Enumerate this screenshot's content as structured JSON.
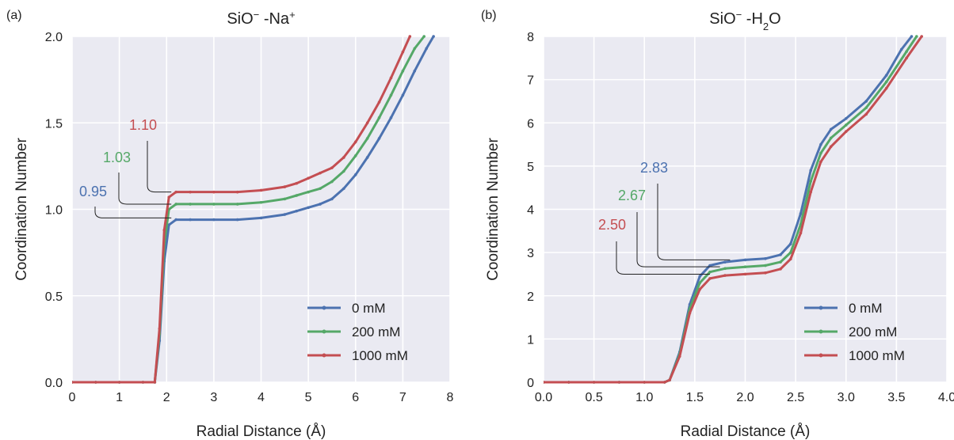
{
  "figure": {
    "panels": [
      "(a)",
      "(b)"
    ]
  },
  "chart_data": [
    {
      "type": "line",
      "panel": "(a)",
      "title": "SiO⁻ -Na⁺",
      "title_main": "SiO",
      "title_sup": "−",
      "title_rest": " -Na",
      "title_sup2": "+",
      "xlabel": "Radial Distance (Å)",
      "ylabel": "Coordination Number",
      "xlim": [
        0,
        8
      ],
      "ylim": [
        0,
        2.0
      ],
      "xticks": [
        "0",
        "1",
        "2",
        "3",
        "4",
        "5",
        "6",
        "7",
        "8"
      ],
      "yticks": [
        "0.0",
        "0.5",
        "1.0",
        "1.5",
        "2.0"
      ],
      "grid": true,
      "legend_position": "bottom-right",
      "series": [
        {
          "name": "0 mM",
          "color": "#4c72b0",
          "x": [
            0,
            0.5,
            1.0,
            1.5,
            1.75,
            1.85,
            1.95,
            2.05,
            2.2,
            2.5,
            3,
            3.5,
            4,
            4.5,
            4.75,
            5,
            5.25,
            5.5,
            5.75,
            6,
            6.25,
            6.5,
            6.75,
            7,
            7.25,
            7.5,
            7.65
          ],
          "y": [
            0,
            0,
            0,
            0,
            0,
            0.24,
            0.7,
            0.91,
            0.94,
            0.94,
            0.94,
            0.94,
            0.95,
            0.97,
            0.99,
            1.01,
            1.03,
            1.06,
            1.12,
            1.2,
            1.3,
            1.41,
            1.53,
            1.66,
            1.8,
            1.93,
            2.0
          ]
        },
        {
          "name": "200 mM",
          "color": "#55a868",
          "x": [
            0,
            0.5,
            1.0,
            1.5,
            1.75,
            1.85,
            1.95,
            2.05,
            2.2,
            2.5,
            3,
            3.5,
            4,
            4.5,
            4.75,
            5,
            5.25,
            5.5,
            5.75,
            6,
            6.25,
            6.5,
            6.75,
            7,
            7.25,
            7.45
          ],
          "y": [
            0,
            0,
            0,
            0,
            0,
            0.28,
            0.8,
            1.0,
            1.03,
            1.03,
            1.03,
            1.03,
            1.04,
            1.06,
            1.08,
            1.1,
            1.12,
            1.16,
            1.22,
            1.31,
            1.41,
            1.53,
            1.66,
            1.8,
            1.93,
            2.0
          ]
        },
        {
          "name": "1000 mM",
          "color": "#c44e52",
          "x": [
            0,
            0.5,
            1.0,
            1.5,
            1.75,
            1.85,
            1.95,
            2.05,
            2.2,
            2.5,
            3,
            3.5,
            4,
            4.5,
            4.75,
            5,
            5.25,
            5.5,
            5.75,
            6,
            6.25,
            6.5,
            6.75,
            7,
            7.15
          ],
          "y": [
            0,
            0,
            0,
            0,
            0,
            0.31,
            0.88,
            1.07,
            1.1,
            1.1,
            1.1,
            1.1,
            1.11,
            1.13,
            1.15,
            1.18,
            1.21,
            1.24,
            1.3,
            1.39,
            1.5,
            1.62,
            1.76,
            1.91,
            2.0
          ]
        }
      ],
      "annotations": [
        {
          "text": "0.95",
          "color": "#4c72b0",
          "value": 0.95,
          "series": "0 mM"
        },
        {
          "text": "1.03",
          "color": "#55a868",
          "value": 1.03,
          "series": "200 mM"
        },
        {
          "text": "1.10",
          "color": "#c44e52",
          "value": 1.1,
          "series": "1000 mM"
        }
      ]
    },
    {
      "type": "line",
      "panel": "(b)",
      "title": "SiO⁻ -H₂O",
      "title_main": "SiO",
      "title_sup": "−",
      "title_rest": " -H",
      "title_sub": "2",
      "title_end": "O",
      "xlabel": "Radial Distance (Å)",
      "ylabel": "Coordination Number",
      "xlim": [
        0,
        4.0
      ],
      "ylim": [
        0,
        8
      ],
      "xticks": [
        "0.0",
        "0.5",
        "1.0",
        "1.5",
        "2.0",
        "2.5",
        "3.0",
        "3.5",
        "4.0"
      ],
      "yticks": [
        "0",
        "1",
        "2",
        "3",
        "4",
        "5",
        "6",
        "7",
        "8"
      ],
      "grid": true,
      "legend_position": "bottom-right",
      "series": [
        {
          "name": "0 mM",
          "color": "#4c72b0",
          "x": [
            0,
            0.25,
            0.5,
            0.75,
            1.0,
            1.2,
            1.25,
            1.35,
            1.45,
            1.55,
            1.65,
            1.8,
            2.0,
            2.2,
            2.35,
            2.45,
            2.55,
            2.65,
            2.75,
            2.85,
            3.0,
            3.2,
            3.4,
            3.55,
            3.65
          ],
          "y": [
            0,
            0,
            0,
            0,
            0,
            0,
            0.05,
            0.7,
            1.8,
            2.45,
            2.7,
            2.78,
            2.83,
            2.86,
            2.95,
            3.2,
            3.9,
            4.9,
            5.5,
            5.85,
            6.1,
            6.5,
            7.1,
            7.7,
            8.0
          ]
        },
        {
          "name": "200 mM",
          "color": "#55a868",
          "x": [
            0,
            0.25,
            0.5,
            0.75,
            1.0,
            1.2,
            1.25,
            1.35,
            1.45,
            1.55,
            1.65,
            1.8,
            2.0,
            2.2,
            2.35,
            2.45,
            2.55,
            2.65,
            2.75,
            2.85,
            3.0,
            3.2,
            3.4,
            3.6,
            3.7
          ],
          "y": [
            0,
            0,
            0,
            0,
            0,
            0,
            0.05,
            0.65,
            1.7,
            2.3,
            2.55,
            2.63,
            2.67,
            2.7,
            2.78,
            3.0,
            3.65,
            4.65,
            5.3,
            5.65,
            5.95,
            6.35,
            6.95,
            7.65,
            8.0
          ]
        },
        {
          "name": "1000 mM",
          "color": "#c44e52",
          "x": [
            0,
            0.25,
            0.5,
            0.75,
            1.0,
            1.2,
            1.25,
            1.35,
            1.45,
            1.55,
            1.65,
            1.8,
            2.0,
            2.2,
            2.35,
            2.45,
            2.55,
            2.65,
            2.75,
            2.85,
            3.0,
            3.2,
            3.4,
            3.6,
            3.75
          ],
          "y": [
            0,
            0,
            0,
            0,
            0,
            0,
            0.05,
            0.6,
            1.6,
            2.15,
            2.4,
            2.47,
            2.5,
            2.53,
            2.62,
            2.85,
            3.45,
            4.4,
            5.1,
            5.45,
            5.8,
            6.2,
            6.8,
            7.5,
            8.0
          ]
        }
      ],
      "annotations": [
        {
          "text": "2.83",
          "color": "#4c72b0",
          "value": 2.83,
          "series": "0 mM"
        },
        {
          "text": "2.67",
          "color": "#55a868",
          "value": 2.67,
          "series": "200 mM"
        },
        {
          "text": "2.50",
          "color": "#c44e52",
          "value": 2.5,
          "series": "1000 mM"
        }
      ]
    }
  ]
}
